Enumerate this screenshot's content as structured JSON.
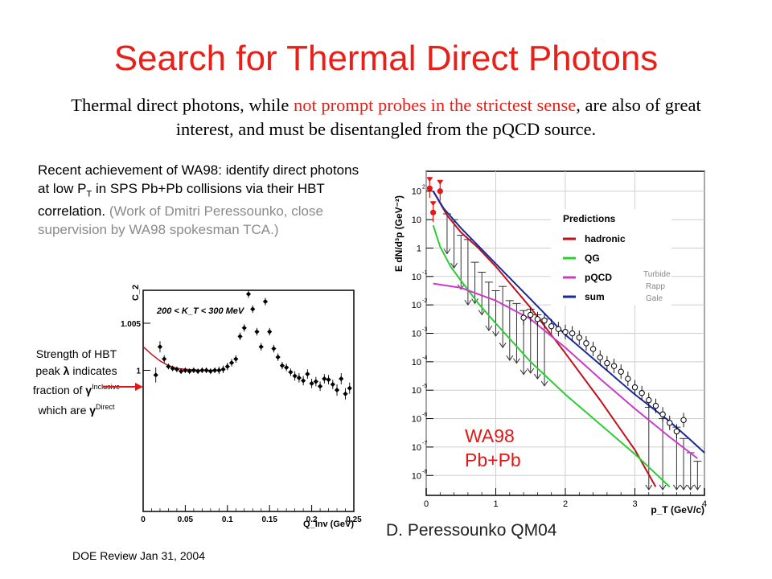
{
  "slide": {
    "title": "Search for Thermal Direct Photons",
    "subtitle": {
      "part1": "Thermal direct photons, while ",
      "red": "not prompt probes in the strictest sense",
      "part2": ", are also of great interest, and must be disentangled from the pQCD source."
    },
    "description": {
      "main_a": "Recent achievement of WA98: identify direct photons at low P",
      "main_sub": "T",
      "main_b": " in SPS Pb+Pb collisions via their HBT correlation.",
      "aside": "(Work of Dmitri Peressounko, close supervision by WA98 spokesman TCA.)"
    },
    "strength_note": {
      "a": "Strength of HBT peak ",
      "lambda": "λ",
      "b": " indicates fraction of ",
      "gamma1": "γ",
      "sup1": "Inclusive",
      "c": " which are ",
      "gamma2": "γ",
      "sup2": "Direct"
    },
    "footer": "DOE Review  Jan 31, 2004",
    "credit": "D. Peressounko QM04"
  },
  "colors": {
    "title": "#e8201a",
    "hadronic": "#c0101a",
    "qg": "#2ecc33",
    "pqcd": "#c83cc8",
    "sum": "#1a2a9a",
    "data_red": "#e01818"
  },
  "chart_data": [
    {
      "type": "scatter",
      "title": "",
      "annotation": "200 < K_T < 300 MeV",
      "xlabel": "Q_inv (GeV)",
      "ylabel": "C_2",
      "xlim": [
        0,
        0.25
      ],
      "ylim": [
        0.985,
        1.0085
      ],
      "x_ticks": [
        "0",
        "0.05",
        "0.1",
        "0.15",
        "0.2",
        "0.25"
      ],
      "y_ticks": [
        {
          "value": 1,
          "label": "1"
        },
        {
          "value": 1.005,
          "label": "1.005"
        }
      ],
      "series": [
        {
          "kind": "points",
          "x": [
            0.015,
            0.02,
            0.025,
            0.03,
            0.035,
            0.04,
            0.045,
            0.05,
            0.055,
            0.06,
            0.065,
            0.07,
            0.075,
            0.08,
            0.085,
            0.09,
            0.095,
            0.1,
            0.105,
            0.11,
            0.115,
            0.12,
            0.125,
            0.13,
            0.135,
            0.14,
            0.145,
            0.15,
            0.155,
            0.16,
            0.165,
            0.17,
            0.175,
            0.18,
            0.185,
            0.19,
            0.195,
            0.2,
            0.205,
            0.21,
            0.215,
            0.22,
            0.225,
            0.23,
            0.235,
            0.24,
            0.245
          ],
          "y": [
            0.9995,
            1.0025,
            1.0012,
            1.0004,
            1.0002,
            1.0001,
            0.9999,
            1.0,
            0.9999,
            1.0,
            0.9999,
            1.0,
            1.0,
            0.9999,
            1.0,
            1.0,
            1.0001,
            1.0004,
            1.0008,
            1.0012,
            1.0036,
            1.0045,
            1.0081,
            1.0065,
            1.0041,
            1.0025,
            1.0073,
            1.0041,
            1.0023,
            1.0014,
            1.0005,
            1.0003,
            0.9998,
            0.9994,
            0.9992,
            0.9989,
            0.9996,
            0.9986,
            0.9988,
            0.9983,
            0.9991,
            0.999,
            0.9985,
            0.9979,
            0.9991,
            0.9975,
            0.9981
          ],
          "err": [
            0.0008,
            0.0006,
            0.0004,
            0.0003,
            0.0003,
            0.0003,
            0.0003,
            0.0003,
            0.0003,
            0.0003,
            0.0003,
            0.0003,
            0.0003,
            0.0003,
            0.0003,
            0.0004,
            0.0004,
            0.0004,
            0.0004,
            0.0004,
            0.0004,
            0.0004,
            0.0004,
            0.0004,
            0.0004,
            0.0004,
            0.0004,
            0.0004,
            0.0004,
            0.0004,
            0.0004,
            0.0004,
            0.0004,
            0.0005,
            0.0005,
            0.0005,
            0.0005,
            0.0005,
            0.0005,
            0.0005,
            0.0005,
            0.0005,
            0.0005,
            0.0006,
            0.0006,
            0.0006,
            0.0006
          ]
        },
        {
          "kind": "fit",
          "x": [
            0.0,
            0.01,
            0.02,
            0.03,
            0.04,
            0.05,
            0.06,
            0.07,
            0.08,
            0.09
          ],
          "y": [
            1.0025,
            1.0017,
            1.001,
            1.0005,
            1.0002,
            1.0001,
            1.00005,
            1.0,
            1.0,
            1.0
          ]
        }
      ]
    },
    {
      "type": "line",
      "title": "",
      "xlabel": "p_T (GeV/c)",
      "ylabel": "E dN/d³p (GeV⁻²)",
      "log_y": true,
      "xlim": [
        0,
        4
      ],
      "ylim": [
        -8.7,
        2.7
      ],
      "x_ticks": [
        "0",
        "1",
        "2",
        "3",
        "4"
      ],
      "y_ticks": [
        {
          "exp": 2,
          "label": "10",
          "sup": "2"
        },
        {
          "exp": 1,
          "label": "10",
          "sup": ""
        },
        {
          "exp": 0,
          "label": "1",
          "sup": ""
        },
        {
          "exp": -1,
          "label": "10",
          "sup": "-1"
        },
        {
          "exp": -2,
          "label": "10",
          "sup": "-2"
        },
        {
          "exp": -3,
          "label": "10",
          "sup": "-3"
        },
        {
          "exp": -4,
          "label": "10",
          "sup": "-4"
        },
        {
          "exp": -5,
          "label": "10",
          "sup": "-5"
        },
        {
          "exp": -6,
          "label": "10",
          "sup": "-6"
        },
        {
          "exp": -7,
          "label": "10",
          "sup": "-7"
        },
        {
          "exp": -8,
          "label": "10",
          "sup": "-8"
        }
      ],
      "legend_title": "Predictions",
      "legend_side_note": [
        "Turbide",
        "Rapp",
        "Gale"
      ],
      "system_label": [
        "WA98",
        "Pb+Pb"
      ],
      "legend": "top-right",
      "series": [
        {
          "name": "hadronic",
          "x": [
            0.1,
            0.3,
            0.5,
            0.75,
            1.0,
            1.5,
            2.0,
            2.5,
            3.0,
            3.3
          ],
          "log10y": [
            2.0,
            1.15,
            0.55,
            0.0,
            -0.65,
            -2.1,
            -3.7,
            -5.35,
            -7.1,
            -8.4
          ]
        },
        {
          "name": "QG",
          "x": [
            0.1,
            0.2,
            0.35,
            0.5,
            0.75,
            1.0,
            1.5,
            2.0,
            2.5,
            3.0,
            3.5
          ],
          "log10y": [
            0.8,
            0.05,
            -0.65,
            -1.15,
            -1.95,
            -2.65,
            -4.0,
            -5.15,
            -6.2,
            -7.25,
            -8.4
          ]
        },
        {
          "name": "pQCD",
          "x": [
            0.1,
            0.5,
            1.0,
            1.5,
            2.0,
            2.5,
            3.0,
            3.5,
            3.9
          ],
          "log10y": [
            -1.25,
            -1.4,
            -1.85,
            -2.5,
            -3.5,
            -4.6,
            -5.65,
            -6.65,
            -7.4
          ]
        },
        {
          "name": "sum",
          "x": [
            0.1,
            0.25,
            0.5,
            1.0,
            1.5,
            2.0,
            2.5,
            3.0,
            3.5,
            3.8,
            4.0
          ],
          "log10y": [
            2.0,
            1.4,
            0.7,
            -0.55,
            -1.8,
            -3.05,
            -4.1,
            -5.15,
            -6.1,
            -6.75,
            -7.2
          ]
        },
        {
          "kind": "points",
          "x": [
            1.4,
            1.5,
            1.6,
            1.7,
            1.8,
            1.9,
            2.0,
            2.1,
            2.2,
            2.3,
            2.4,
            2.5,
            2.6,
            2.7,
            2.8,
            2.9,
            3.0,
            3.1,
            3.2,
            3.3,
            3.4,
            3.5,
            3.6,
            3.7
          ],
          "log10y": [
            -2.45,
            -2.35,
            -2.5,
            -2.55,
            -2.75,
            -2.85,
            -2.95,
            -3.0,
            -3.15,
            -3.35,
            -3.55,
            -3.85,
            -4.05,
            -4.15,
            -4.35,
            -4.6,
            -4.9,
            -5.1,
            -5.35,
            -5.55,
            -5.85,
            -6.15,
            -6.45,
            -6.05
          ]
        },
        {
          "kind": "upper_limits",
          "x": [
            0.3,
            0.4,
            0.5,
            0.6,
            0.7,
            0.8,
            0.9,
            1.0,
            1.1,
            1.2,
            1.3,
            1.4,
            1.5,
            1.6,
            1.7,
            3.2,
            3.4,
            3.6,
            3.7,
            3.8,
            3.9
          ],
          "log10y_top": [
            1.2,
            1.0,
            0.45,
            0.3,
            -0.5,
            -0.85,
            -1.2,
            -1.5,
            -1.35,
            -1.85,
            -1.95,
            -2.2,
            -2.15,
            -2.35,
            -2.5,
            -5.6,
            -6.0,
            -6.3,
            -6.7,
            -7.2,
            -7.5
          ],
          "log10y_bottom": [
            -0.2,
            -0.7,
            -1.45,
            -2.0,
            -1.95,
            -2.35,
            -2.9,
            -3.1,
            -3.5,
            -3.95,
            -4.05,
            -4.45,
            -4.4,
            -4.6,
            -4.85,
            -8.5,
            -8.5,
            -8.5,
            -8.5,
            -8.5,
            -8.5
          ]
        },
        {
          "kind": "red_points",
          "x": [
            0.05,
            0.2,
            0.1
          ],
          "log10y": [
            2.1,
            2.0,
            1.25
          ]
        }
      ]
    }
  ]
}
